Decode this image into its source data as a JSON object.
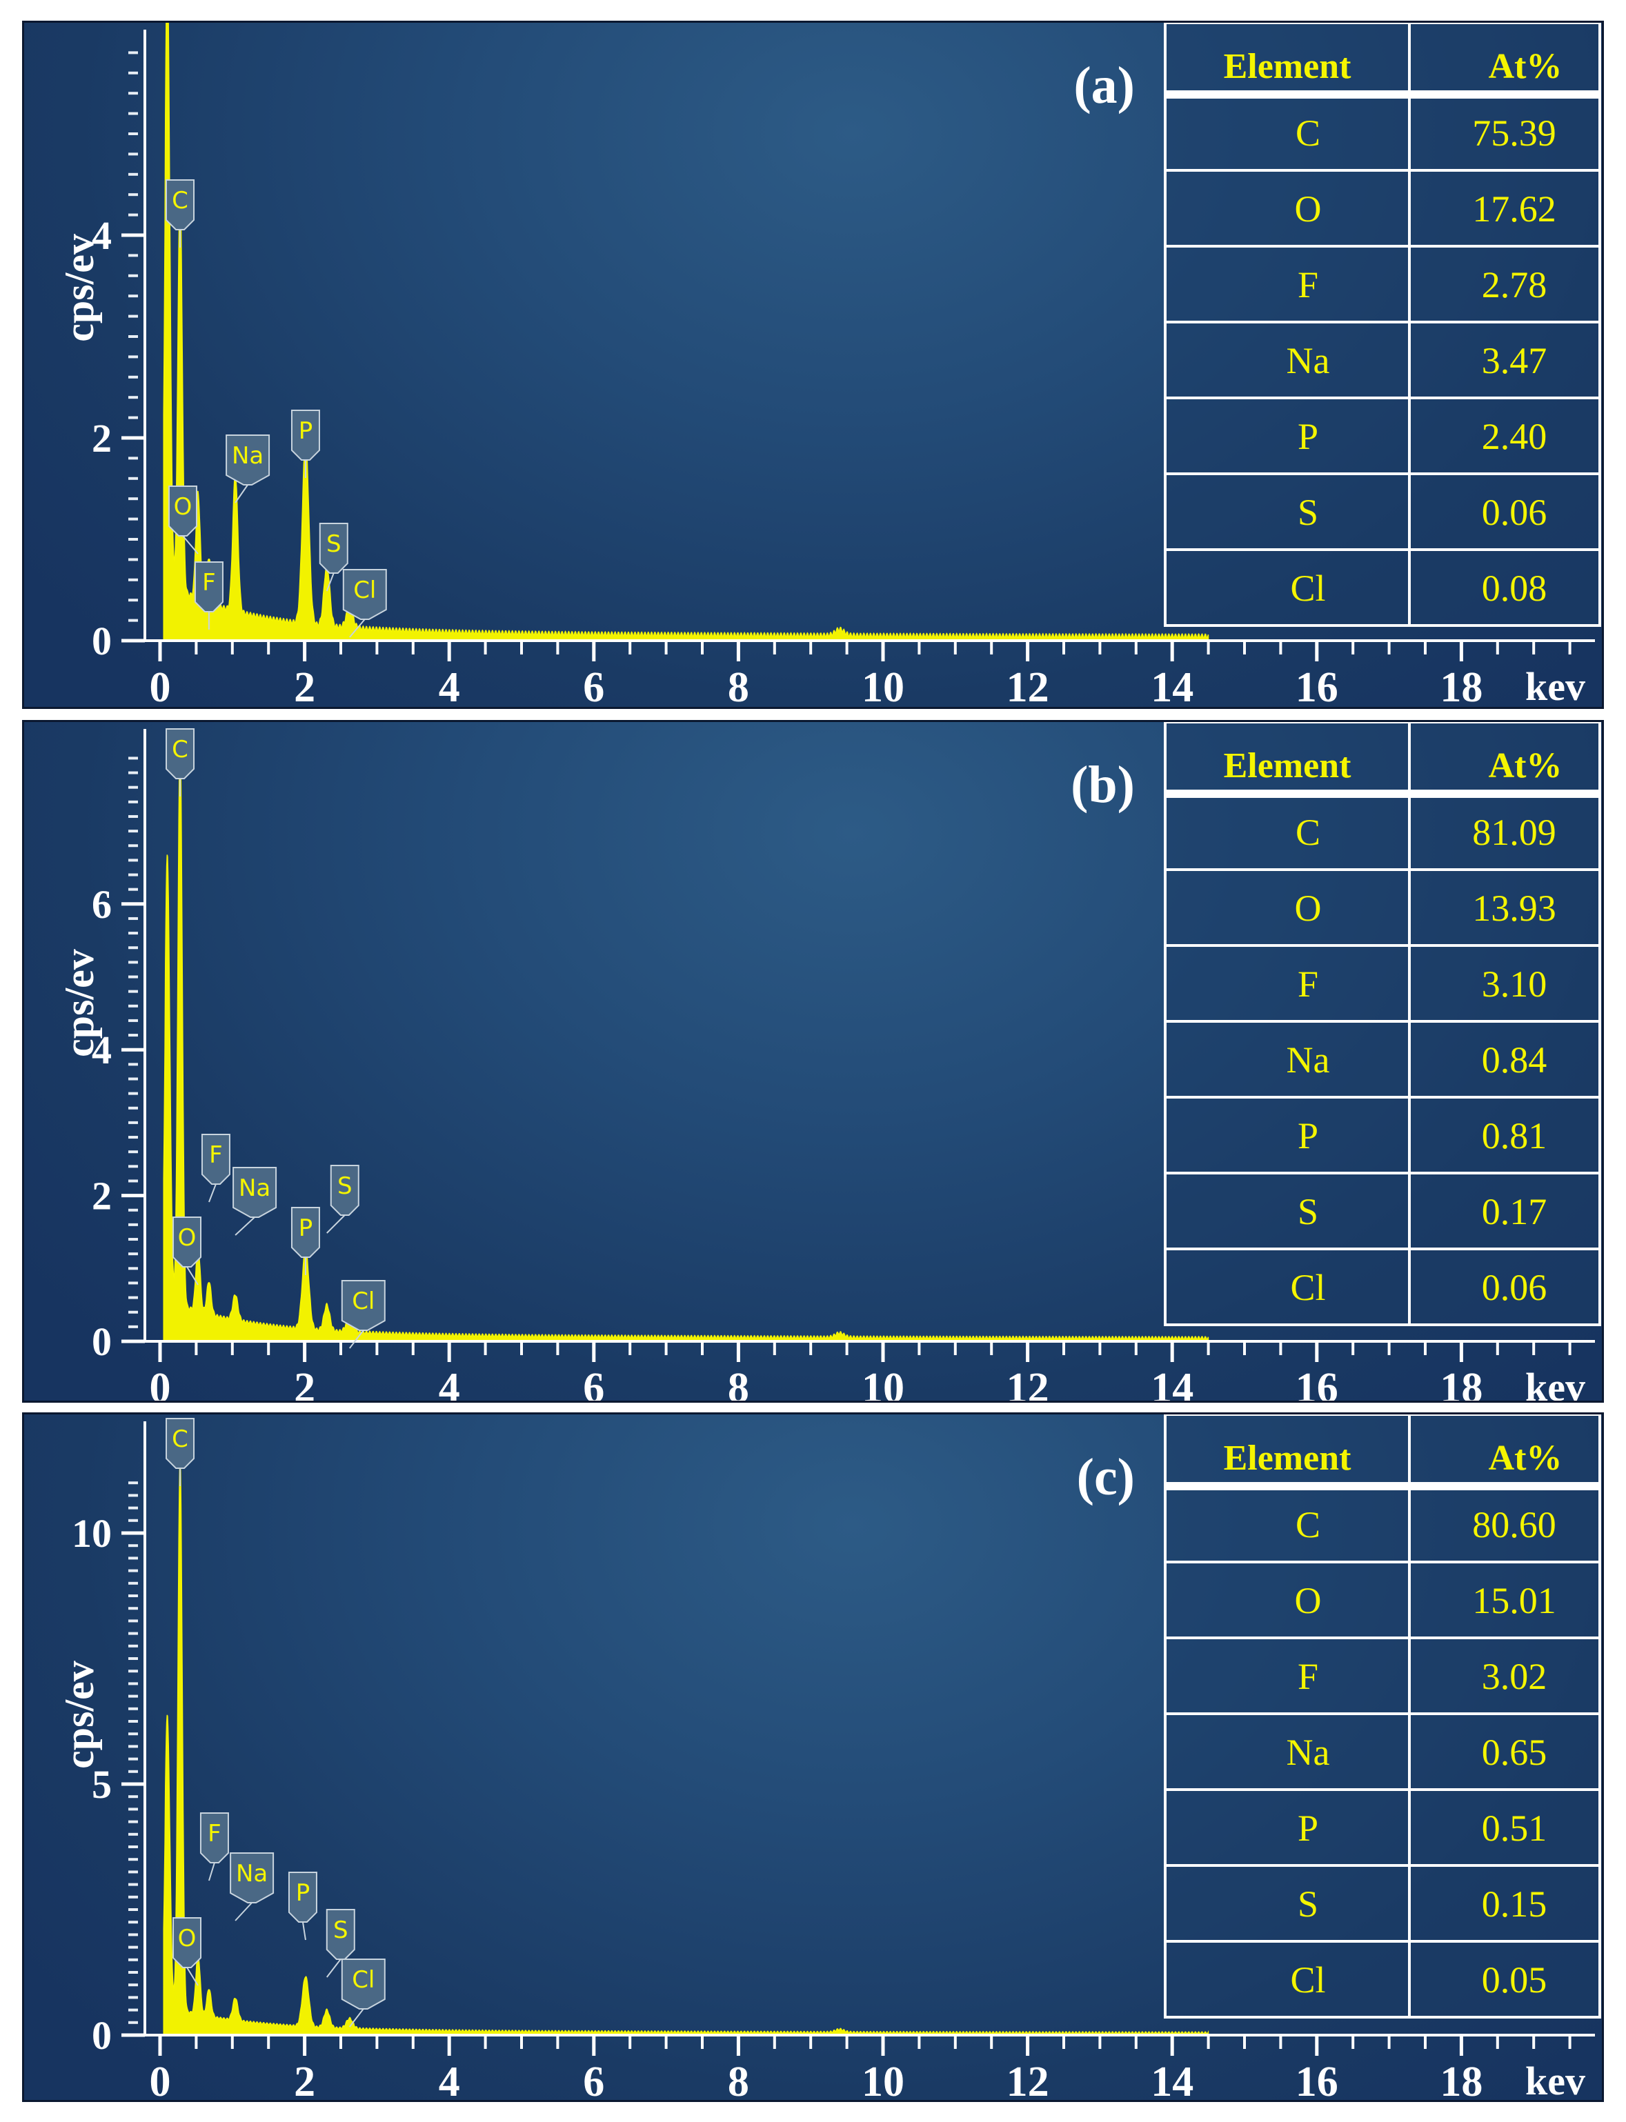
{
  "figure": {
    "ylabel": "cps/ev",
    "xunit": "kev",
    "table_headers": [
      "Element",
      "At%"
    ],
    "colors": {
      "spectrum": "#f2f200",
      "text_yellow": "#f5f500",
      "axis_white": "#ffffff",
      "label_box": "#3a5a7a"
    }
  },
  "chart_data": [
    {
      "type": "line",
      "panel": "(a)",
      "ylabel": "cps/ev",
      "xunit": "kev",
      "xlim": [
        0,
        20
      ],
      "ylim": [
        0,
        6
      ],
      "xticks": [
        "0",
        "2",
        "4",
        "6",
        "8",
        "10",
        "12",
        "14",
        "16",
        "18"
      ],
      "yticks": [
        "0",
        "2",
        "4"
      ],
      "series": [
        {
          "x": [
            0.1,
            0.277,
            0.525,
            0.677,
            1.041,
            2.013,
            2.307,
            2.622,
            9.4
          ],
          "y": [
            6.1,
            4.0,
            1.05,
            0.45,
            1.35,
            1.8,
            0.6,
            0.2,
            0.06
          ]
        }
      ],
      "peak_labels": [
        {
          "label": "C",
          "x": 0.277
        },
        {
          "label": "O",
          "x": 0.525
        },
        {
          "label": "F",
          "x": 0.677
        },
        {
          "label": "Na",
          "x": 1.041
        },
        {
          "label": "P",
          "x": 2.013
        },
        {
          "label": "S",
          "x": 2.307
        },
        {
          "label": "Cl",
          "x": 2.622
        }
      ],
      "table": [
        {
          "element": "C",
          "at": "75.39"
        },
        {
          "element": "O",
          "at": "17.62"
        },
        {
          "element": "F",
          "at": "2.78"
        },
        {
          "element": "Na",
          "at": "3.47"
        },
        {
          "element": "P",
          "at": "2.40"
        },
        {
          "element": "S",
          "at": "0.06"
        },
        {
          "element": "Cl",
          "at": "0.08"
        }
      ]
    },
    {
      "type": "line",
      "panel": "(b)",
      "ylabel": "cps/ev",
      "xunit": "kev",
      "xlim": [
        0,
        20
      ],
      "ylim": [
        0,
        8
      ],
      "xticks": [
        "0",
        "2",
        "4",
        "6",
        "8",
        "10",
        "12",
        "14",
        "16",
        "18"
      ],
      "yticks": [
        "0",
        "2",
        "4",
        "6"
      ],
      "series": [
        {
          "x": [
            0.1,
            0.277,
            0.525,
            0.677,
            1.041,
            2.013,
            2.307,
            2.622,
            9.4
          ],
          "y": [
            6.1,
            7.8,
            0.9,
            0.45,
            0.35,
            1.1,
            0.35,
            0.2,
            0.06
          ]
        }
      ],
      "peak_labels": [
        {
          "label": "C",
          "x": 0.277
        },
        {
          "label": "O",
          "x": 0.525
        },
        {
          "label": "F",
          "x": 0.677
        },
        {
          "label": "Na",
          "x": 1.041
        },
        {
          "label": "P",
          "x": 2.013
        },
        {
          "label": "S",
          "x": 2.307
        },
        {
          "label": "Cl",
          "x": 2.622
        }
      ],
      "table": [
        {
          "element": "C",
          "at": "81.09"
        },
        {
          "element": "O",
          "at": "13.93"
        },
        {
          "element": "F",
          "at": "3.10"
        },
        {
          "element": "Na",
          "at": "0.84"
        },
        {
          "element": "P",
          "at": "0.81"
        },
        {
          "element": "S",
          "at": "0.17"
        },
        {
          "element": "Cl",
          "at": "0.06"
        }
      ]
    },
    {
      "type": "line",
      "panel": "(c)",
      "ylabel": "cps/ev",
      "xunit": "kev",
      "xlim": [
        0,
        20
      ],
      "ylim": [
        0,
        11
      ],
      "xticks": [
        "0",
        "2",
        "4",
        "6",
        "8",
        "10",
        "12",
        "14",
        "16",
        "18"
      ],
      "yticks": [
        "0",
        "5",
        "10"
      ],
      "series": [
        {
          "x": [
            0.1,
            0.277,
            0.525,
            0.677,
            1.041,
            2.013,
            2.307,
            2.622,
            9.4
          ],
          "y": [
            5.8,
            11.0,
            1.2,
            0.55,
            0.45,
            1.0,
            0.35,
            0.2,
            0.06
          ]
        }
      ],
      "peak_labels": [
        {
          "label": "C",
          "x": 0.277
        },
        {
          "label": "O",
          "x": 0.525
        },
        {
          "label": "F",
          "x": 0.677
        },
        {
          "label": "Na",
          "x": 1.041
        },
        {
          "label": "P",
          "x": 2.013
        },
        {
          "label": "S",
          "x": 2.307
        },
        {
          "label": "Cl",
          "x": 2.622
        }
      ],
      "table": [
        {
          "element": "C",
          "at": "80.60"
        },
        {
          "element": "O",
          "at": "15.01"
        },
        {
          "element": "F",
          "at": "3.02"
        },
        {
          "element": "Na",
          "at": "0.65"
        },
        {
          "element": "P",
          "at": "0.51"
        },
        {
          "element": "S",
          "at": "0.15"
        },
        {
          "element": "Cl",
          "at": "0.05"
        }
      ]
    }
  ]
}
